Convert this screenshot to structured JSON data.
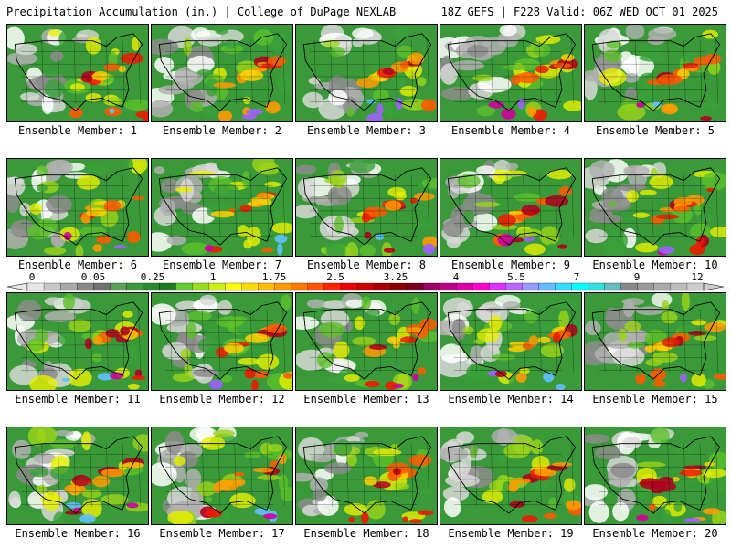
{
  "header": {
    "title": "Precipitation Accumulation (in.) | College of DuPage NEXLAB",
    "run_info": "18Z GEFS | F228 Valid: 06Z WED OCT 01 2025"
  },
  "members": [
    {
      "label": "Ensemble Member: 1",
      "seed": 11
    },
    {
      "label": "Ensemble Member: 2",
      "seed": 23
    },
    {
      "label": "Ensemble Member: 3",
      "seed": 37
    },
    {
      "label": "Ensemble Member: 4",
      "seed": 41
    },
    {
      "label": "Ensemble Member: 5",
      "seed": 53
    },
    {
      "label": "Ensemble Member: 6",
      "seed": 67
    },
    {
      "label": "Ensemble Member: 7",
      "seed": 71
    },
    {
      "label": "Ensemble Member: 8",
      "seed": 83
    },
    {
      "label": "Ensemble Member: 9",
      "seed": 97
    },
    {
      "label": "Ensemble Member: 10",
      "seed": 101
    },
    {
      "label": "Ensemble Member: 11",
      "seed": 113
    },
    {
      "label": "Ensemble Member: 12",
      "seed": 127
    },
    {
      "label": "Ensemble Member: 13",
      "seed": 131
    },
    {
      "label": "Ensemble Member: 14",
      "seed": 149
    },
    {
      "label": "Ensemble Member: 15",
      "seed": 157
    },
    {
      "label": "Ensemble Member: 16",
      "seed": 163
    },
    {
      "label": "Ensemble Member: 17",
      "seed": 173
    },
    {
      "label": "Ensemble Member: 18",
      "seed": 181
    },
    {
      "label": "Ensemble Member: 19",
      "seed": 191
    },
    {
      "label": "Ensemble Member: 20",
      "seed": 199
    }
  ],
  "legend": {
    "tick_labels": [
      "0",
      "0.05",
      "0.25",
      "1",
      "1.75",
      "2.5",
      "3.25",
      "4",
      "5.5",
      "7",
      "9",
      "12"
    ],
    "colors": [
      "#e8e8e8",
      "#c8c8c8",
      "#a8a8a8",
      "#888888",
      "#707070",
      "#58a058",
      "#3a9a3a",
      "#2a8a2a",
      "#1e7a1e",
      "#66cc33",
      "#99dd22",
      "#ccee11",
      "#ffff00",
      "#ffdd00",
      "#ffbb00",
      "#ff9900",
      "#ff7700",
      "#ff5500",
      "#ff2200",
      "#ee0000",
      "#cc0000",
      "#aa0000",
      "#880000",
      "#770022",
      "#990066",
      "#bb0088",
      "#dd00aa",
      "#ff00cc",
      "#dd33ff",
      "#bb66ff",
      "#9999ff",
      "#66bbff",
      "#33ddff",
      "#00ffff",
      "#33dddd",
      "#66bbbb",
      "#888888",
      "#999999",
      "#aaaaaa",
      "#bbbbbb",
      "#cccccc"
    ]
  }
}
